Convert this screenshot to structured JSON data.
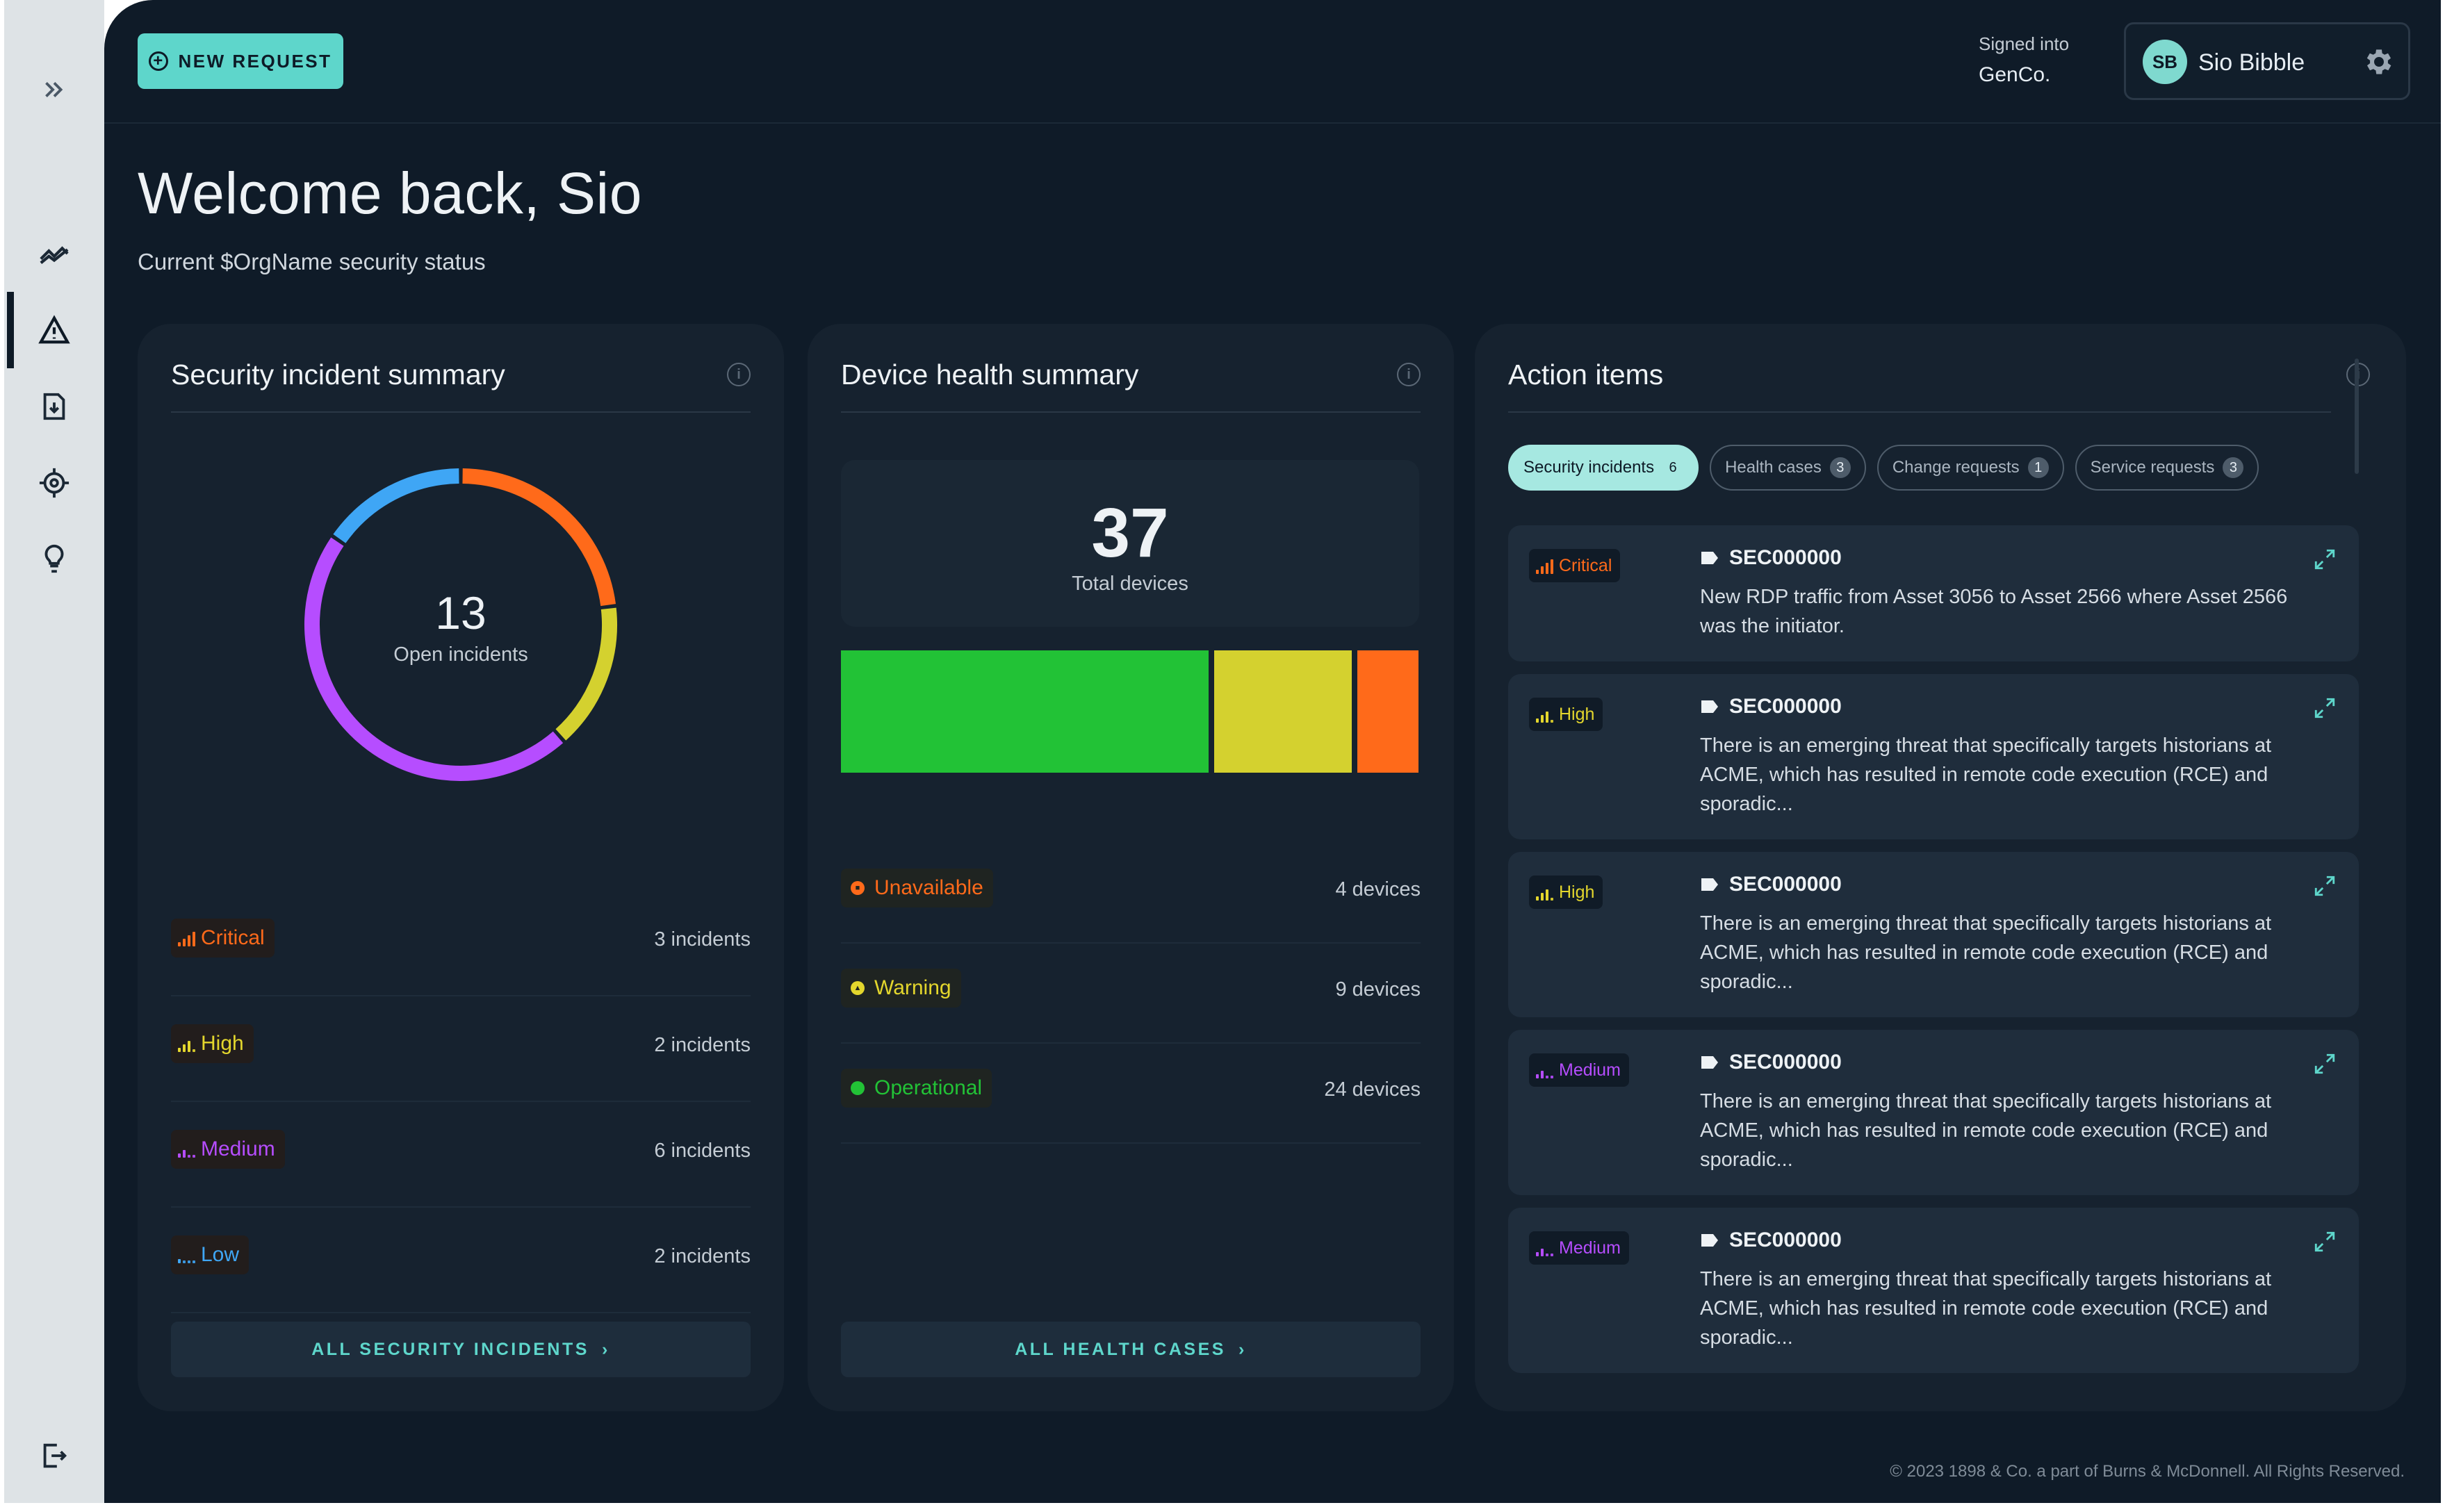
{
  "header": {
    "new_request_label": "NEW REQUEST",
    "signed_into_label": "Signed into",
    "org_name": "GenCo.",
    "user_initials": "SB",
    "user_name": "Sio Bibble"
  },
  "page": {
    "welcome": "Welcome back, Sio",
    "subtitle": "Current $OrgName security status"
  },
  "sidebar": {
    "items": [
      {
        "icon": "double-chevron-right-icon",
        "active": false
      },
      {
        "icon": "trend-chart-icon",
        "active": false
      },
      {
        "icon": "warning-triangle-icon",
        "active": true
      },
      {
        "icon": "document-download-icon",
        "active": false
      },
      {
        "icon": "target-crosshair-icon",
        "active": false
      },
      {
        "icon": "lightbulb-icon",
        "active": false
      },
      {
        "icon": "logout-icon",
        "active": false
      }
    ]
  },
  "incidents": {
    "title": "Security incident summary",
    "total": "13",
    "total_label": "Open incidents",
    "rows": [
      {
        "label": "Critical",
        "count": "3 incidents",
        "color": "#ff6a1a"
      },
      {
        "label": "High",
        "count": "2 incidents",
        "color": "#e3d62d"
      },
      {
        "label": "Medium",
        "count": "6 incidents",
        "color": "#b64dff"
      },
      {
        "label": "Low",
        "count": "2 incidents",
        "color": "#3fa6f5"
      }
    ],
    "button_label": "ALL SECURITY INCIDENTS"
  },
  "chart_data": {
    "type": "pie",
    "categories": [
      "Critical",
      "High",
      "Medium",
      "Low"
    ],
    "values": [
      3,
      2,
      6,
      2
    ],
    "colors": [
      "#ff6a1a",
      "#d4d12f",
      "#b64dff",
      "#3fa6f5"
    ]
  },
  "device_health": {
    "title": "Device health summary",
    "total": "37",
    "total_label": "Total devices",
    "bar_values": [
      24,
      9,
      4
    ],
    "bar_colors": [
      "#22c236",
      "#d4d12f",
      "#ff6a1a"
    ],
    "rows": [
      {
        "label": "Unavailable",
        "count": "4 devices",
        "color": "#ff6a1a"
      },
      {
        "label": "Warning",
        "count": "9 devices",
        "color": "#e3d62d"
      },
      {
        "label": "Operational",
        "count": "24 devices",
        "color": "#22c236"
      }
    ],
    "button_label": "ALL HEALTH CASES"
  },
  "action_items": {
    "title": "Action items",
    "filters": [
      {
        "label": "Security incidents",
        "count": "6",
        "active": true
      },
      {
        "label": "Health cases",
        "count": "3",
        "active": false
      },
      {
        "label": "Change requests",
        "count": "1",
        "active": false
      },
      {
        "label": "Service requests",
        "count": "3",
        "active": false
      }
    ],
    "items": [
      {
        "severity": "Critical",
        "color": "#ff6a1a",
        "id": "SEC000000",
        "desc": "New RDP traffic from Asset 3056 to Asset 2566 where Asset 2566 was the initiator."
      },
      {
        "severity": "High",
        "color": "#e3d62d",
        "id": "SEC000000",
        "desc": "There is an emerging threat that specifically targets historians at ACME, which has resulted in remote code execution (RCE) and sporadic..."
      },
      {
        "severity": "High",
        "color": "#e3d62d",
        "id": "SEC000000",
        "desc": "There is an emerging threat that specifically targets historians at ACME, which has resulted in remote code execution (RCE) and sporadic..."
      },
      {
        "severity": "Medium",
        "color": "#b64dff",
        "id": "SEC000000",
        "desc": "There is an emerging threat that specifically targets historians at ACME, which has resulted in remote code execution (RCE) and sporadic..."
      },
      {
        "severity": "Medium",
        "color": "#b64dff",
        "id": "SEC000000",
        "desc": "There is an emerging threat that specifically targets historians at ACME, which has resulted in remote code execution (RCE) and sporadic..."
      }
    ]
  },
  "footer": {
    "copyright": "© 2023 1898 & Co. a part of Burns & McDonnell. All Rights Reserved."
  }
}
